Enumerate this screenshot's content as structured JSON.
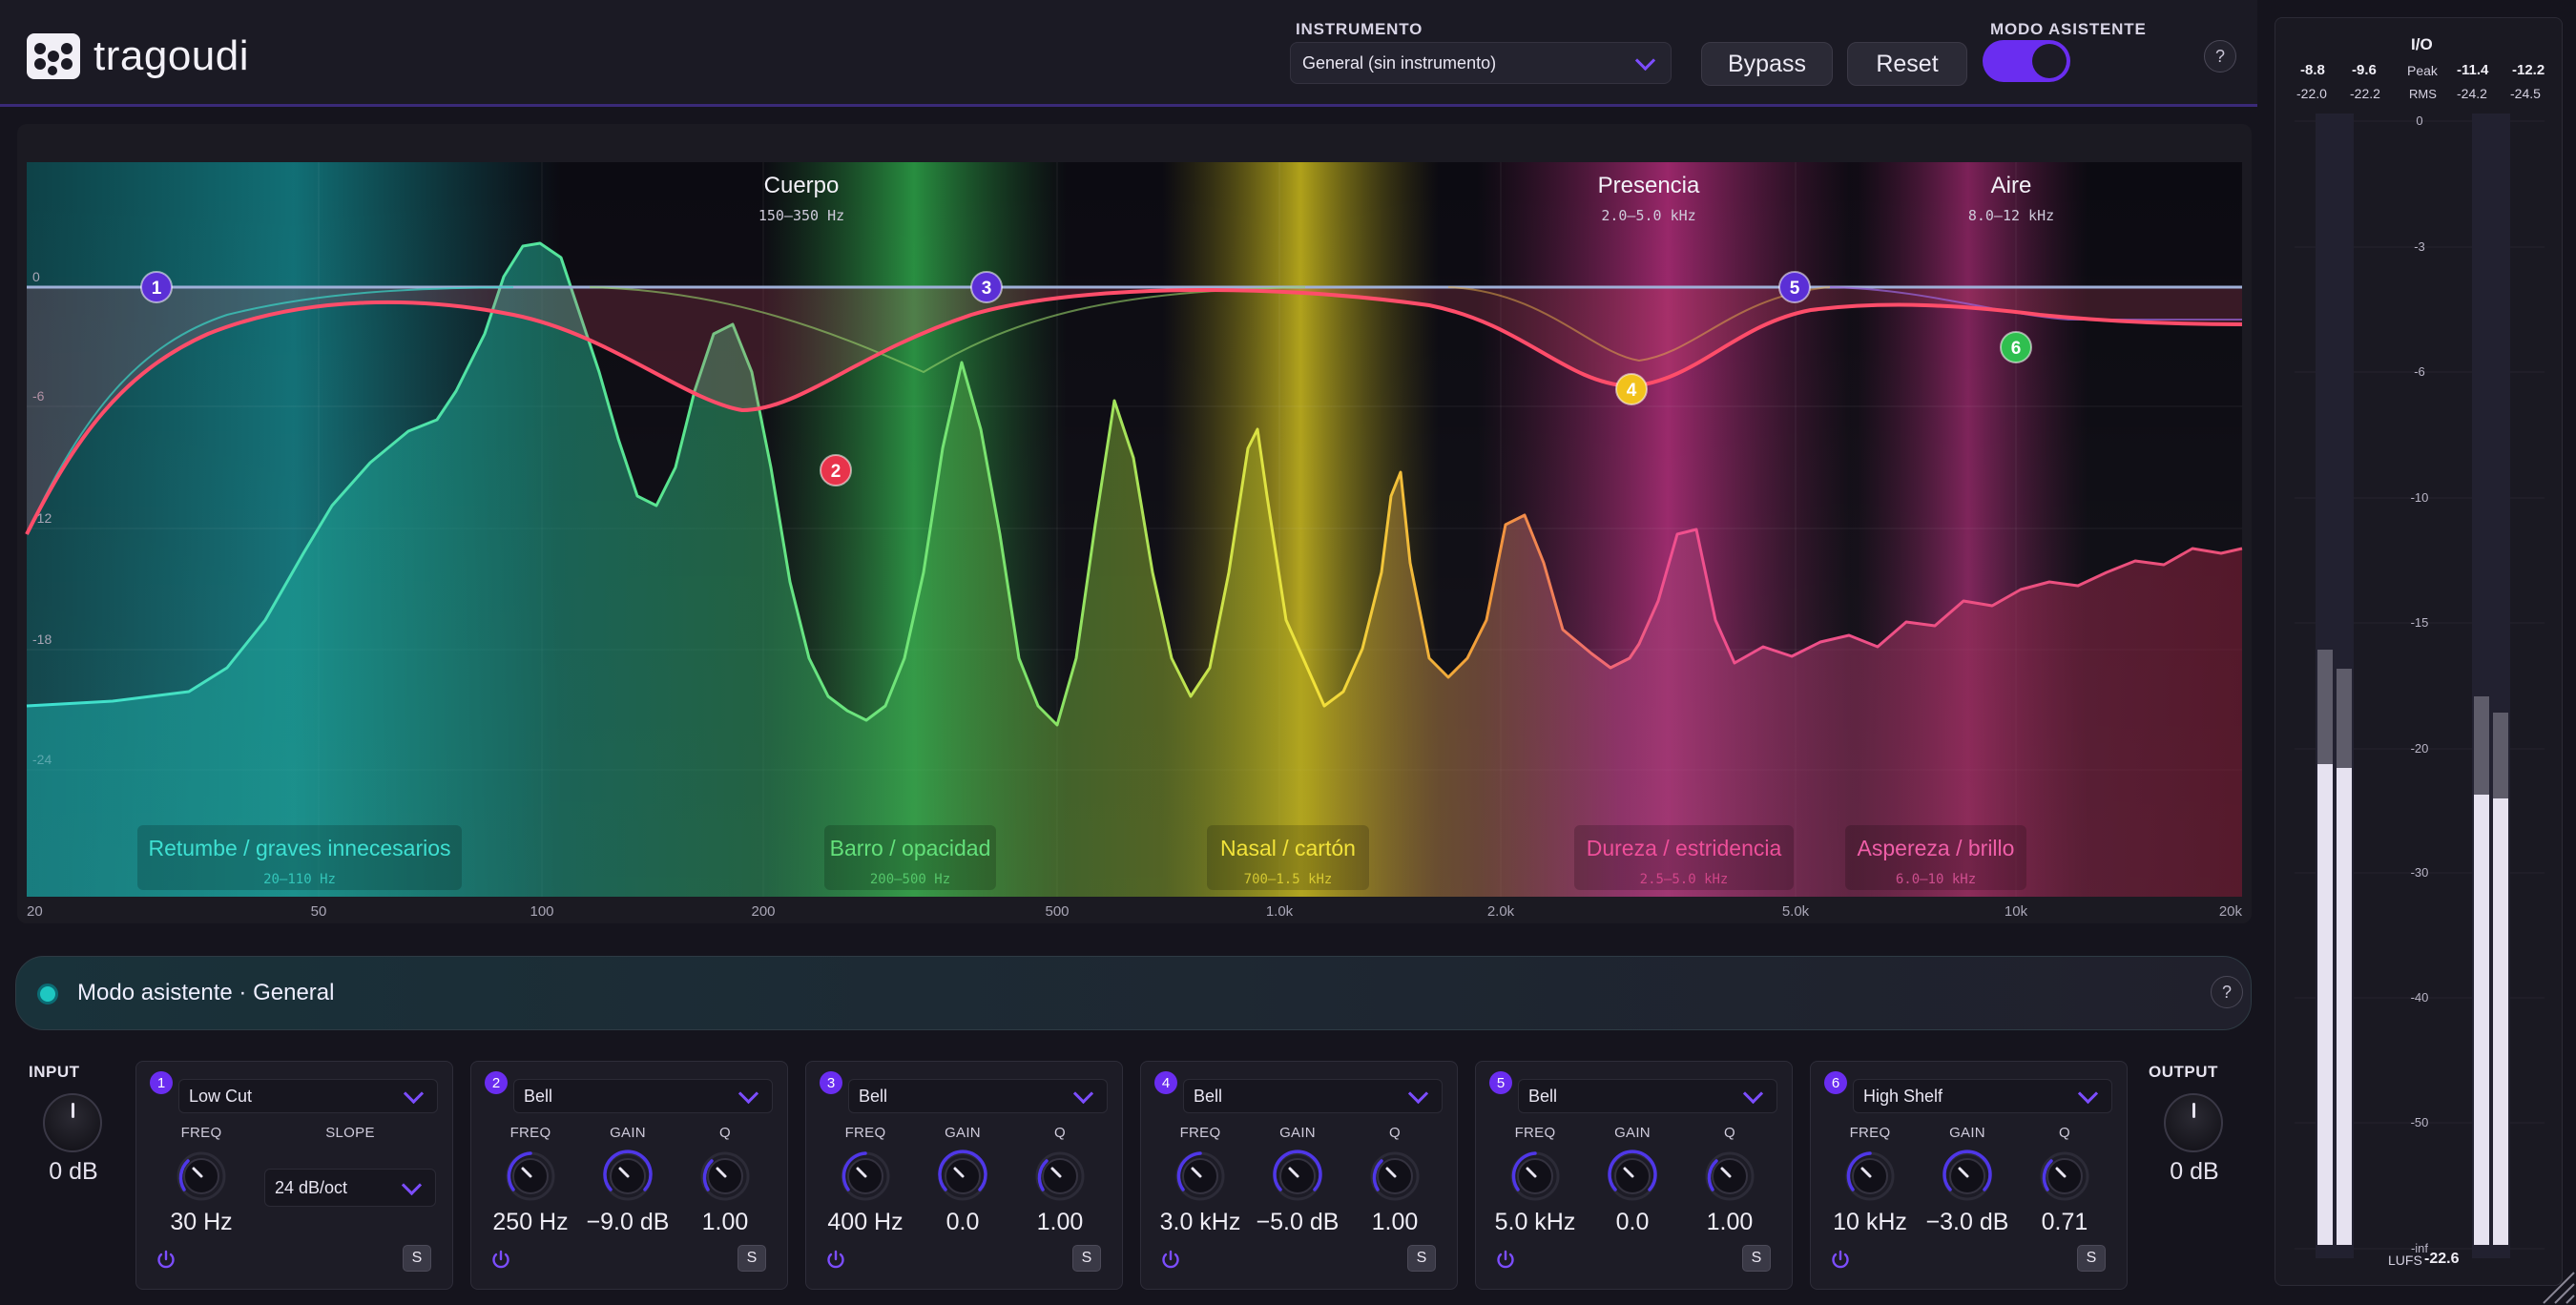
{
  "app": {
    "logo_text": "tragoudi"
  },
  "header": {
    "instrument_label": "INSTRUMENTO",
    "instrument_value": "General (sin instrumento)",
    "bypass_label": "Bypass",
    "reset_label": "Reset",
    "assistant_mode_label": "MODO ASISTENTE",
    "assistant_mode_on": true,
    "help": "?"
  },
  "graph": {
    "db_ticks": [
      "0",
      "-6",
      "-12",
      "-18",
      "-24"
    ],
    "freq_ticks": [
      "20",
      "50",
      "100",
      "200",
      "500",
      "1.0k",
      "2.0k",
      "5.0k",
      "10k",
      "20k"
    ],
    "zones_top": [
      {
        "name": "Cuerpo",
        "range": "150–350 Hz"
      },
      {
        "name": "Presencia",
        "range": "2.0–5.0 kHz"
      },
      {
        "name": "Aire",
        "range": "8.0–12 kHz"
      }
    ],
    "zones_bottom": [
      {
        "name": "Retumbe / graves innecesarios",
        "range": "20–110 Hz",
        "color": "#3ee0d2"
      },
      {
        "name": "Barro / opacidad",
        "range": "200–500 Hz",
        "color": "#63e07a"
      },
      {
        "name": "Nasal / cartón",
        "range": "700–1.5 kHz",
        "color": "#f2e33a"
      },
      {
        "name": "Dureza / estridencia",
        "range": "2.5–5.0 kHz",
        "color": "#ee4f9a"
      },
      {
        "name": "Aspereza / brillo",
        "range": "6.0–10 kHz",
        "color": "#f05ea8"
      }
    ],
    "nodes": [
      {
        "label": "1",
        "color": "#5b2fd6"
      },
      {
        "label": "2",
        "color": "#e8344b"
      },
      {
        "label": "3",
        "color": "#5b2fd6"
      },
      {
        "label": "4",
        "color": "#f2c21c"
      },
      {
        "label": "5",
        "color": "#5b2fd6"
      },
      {
        "label": "6",
        "color": "#2fbf4f"
      }
    ]
  },
  "assistant": {
    "title": "Modo asistente · General",
    "help": "?"
  },
  "io": {
    "input_label": "INPUT",
    "input_value": "0 dB",
    "output_label": "OUTPUT",
    "output_value": "0 dB"
  },
  "bands": [
    {
      "num": "1",
      "type": "Low Cut",
      "freq_label": "FREQ",
      "freq": "30 Hz",
      "slope_label": "SLOPE",
      "slope": "24 dB/oct",
      "solo": "S"
    },
    {
      "num": "2",
      "type": "Bell",
      "freq_label": "FREQ",
      "gain_label": "GAIN",
      "q_label": "Q",
      "freq": "250 Hz",
      "gain": "−9.0 dB",
      "q": "1.00",
      "solo": "S"
    },
    {
      "num": "3",
      "type": "Bell",
      "freq_label": "FREQ",
      "gain_label": "GAIN",
      "q_label": "Q",
      "freq": "400 Hz",
      "gain": "0.0",
      "q": "1.00",
      "solo": "S"
    },
    {
      "num": "4",
      "type": "Bell",
      "freq_label": "FREQ",
      "gain_label": "GAIN",
      "q_label": "Q",
      "freq": "3.0 kHz",
      "gain": "−5.0 dB",
      "q": "1.00",
      "solo": "S"
    },
    {
      "num": "5",
      "type": "Bell",
      "freq_label": "FREQ",
      "gain_label": "GAIN",
      "q_label": "Q",
      "freq": "5.0 kHz",
      "gain": "0.0",
      "q": "1.00",
      "solo": "S"
    },
    {
      "num": "6",
      "type": "High Shelf",
      "freq_label": "FREQ",
      "gain_label": "GAIN",
      "q_label": "Q",
      "freq": "10 kHz",
      "gain": "−3.0 dB",
      "q": "0.71",
      "solo": "S"
    }
  ],
  "meters": {
    "title": "I/O",
    "in_peak_l": "-8.8",
    "in_peak_r": "-9.6",
    "in_rms_l": "-22.0",
    "in_rms_r": "-22.2",
    "out_peak_l": "-11.4",
    "out_peak_r": "-12.2",
    "out_rms_l": "-24.2",
    "out_rms_r": "-24.5",
    "peak_label": "Peak",
    "rms_label": "RMS",
    "scale": [
      "0",
      "-3",
      "-6",
      "-10",
      "-15",
      "-20",
      "-30",
      "-40",
      "-50",
      "-inf"
    ],
    "lufs_label": "LUFS",
    "lufs_value": "-22.6"
  }
}
